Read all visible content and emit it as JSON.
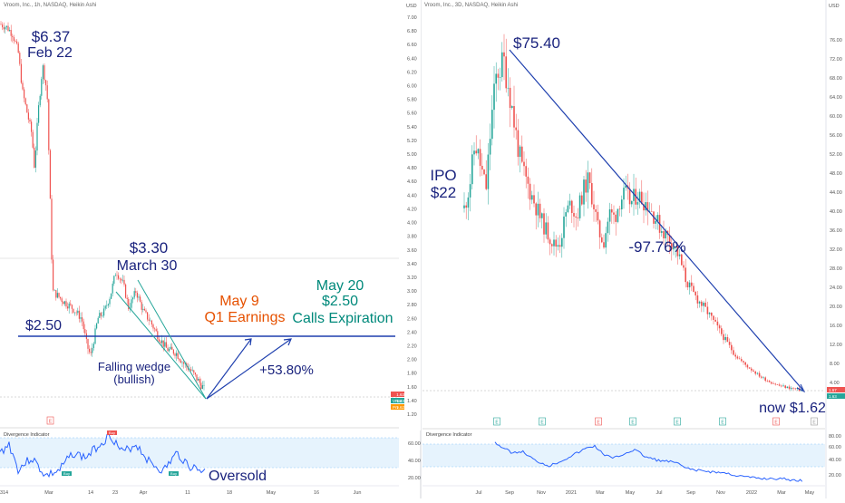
{
  "left": {
    "header": "Vroom, Inc., 1h, NASDAQ, Heikin Ashi",
    "price_axis": {
      "ticks": [
        "7.00",
        "6.80",
        "6.60",
        "6.40",
        "6.20",
        "6.00",
        "5.80",
        "5.60",
        "5.40",
        "5.20",
        "5.00",
        "4.80",
        "4.60",
        "4.40",
        "4.20",
        "4.00",
        "3.80",
        "3.60",
        "3.40",
        "3.20",
        "3.00",
        "2.80",
        "2.60",
        "2.40",
        "2.20",
        "2.00",
        "1.80",
        "1.60",
        "1.40",
        "1.20"
      ],
      "unit": "USD"
    },
    "x_ticks": [
      "14",
      "Mar",
      "14",
      "23",
      "Apr",
      "11",
      "18",
      "May",
      "16",
      "Jun",
      "13"
    ],
    "annotations": {
      "high_price": "$6.37",
      "high_date": "Feb 22",
      "mid_price": "$3.30",
      "mid_date": "March 30",
      "support": "$2.50",
      "wedge_1": "Falling wedge",
      "wedge_2": "(bullish)",
      "target_pct": "+53.80%",
      "earnings_1": "May 9",
      "earnings_2": "Q1 Earnings",
      "expiry_1": "May 20",
      "expiry_2": "$2.50",
      "expiry_3": "Calls Expiration",
      "oversold": "Oversold"
    },
    "price_tags": [
      "1.63",
      "1.63",
      "1.62"
    ],
    "tag_labels": [
      "VRM",
      "Prv"
    ],
    "indicator": {
      "title": "Divergence Indicator",
      "ticks": [
        "60.00",
        "40.00",
        "20.00"
      ]
    },
    "event_marks": [
      "E",
      "Buy",
      "Buy",
      "Buy"
    ]
  },
  "right": {
    "header": "Vroom, Inc., 3D, NASDAQ, Heikin Ashi",
    "price_axis": {
      "ticks": [
        "76.00",
        "72.00",
        "68.00",
        "64.00",
        "60.00",
        "56.00",
        "52.00",
        "48.00",
        "44.00",
        "40.00",
        "36.00",
        "32.00",
        "28.00",
        "24.00",
        "20.00",
        "16.00",
        "12.00",
        "8.00",
        "4.00"
      ],
      "unit": "USD"
    },
    "x_ticks": [
      "Jul",
      "Sep",
      "Nov",
      "2021",
      "Mar",
      "May",
      "Jul",
      "Sep",
      "Nov",
      "2022",
      "Mar",
      "May"
    ],
    "annotations": {
      "high": "$75.40",
      "ipo_1": "IPO",
      "ipo_2": "$22",
      "drop_pct": "-97.76%",
      "now": "now $1.62"
    },
    "price_tags": [
      "1.67",
      "1.63"
    ],
    "indicator": {
      "title": "Divergence Indicator",
      "ticks": [
        "80.00",
        "60.00",
        "40.00",
        "20.00"
      ]
    },
    "event_marks": [
      "E",
      "E",
      "E",
      "E",
      "E",
      "E",
      "E",
      "E"
    ]
  },
  "colors": {
    "up": "#26a69a",
    "down": "#ef5350",
    "annot_blue": "#1a237e",
    "line_blue": "#1e3fae",
    "earnings_orange": "#e65100",
    "expiry_green": "#00897b",
    "indicator": "#2962ff"
  },
  "chart_data": [
    {
      "type": "line",
      "title": "",
      "series": [
        {
          "name": "",
          "x": [
            "Feb 14",
            "Feb 22",
            "Mar 1",
            "Mar 14",
            "Mar 23",
            "Mar 30",
            "Apr 4",
            "Apr 11",
            "Apr 18",
            "Apr 22"
          ],
          "y": [
            6.9,
            6.37,
            3.0,
            2.6,
            3.1,
            3.3,
            2.9,
            2.4,
            2.0,
            1.62
          ]
        }
      ],
      "ylim": [
        1.2,
        7.0
      ]
    },
    {
      "type": "line",
      "title": "",
      "series": [
        {
          "name": "",
          "x": [
            "Jul 2020",
            "Sep 2020",
            "Nov 2020",
            "2021",
            "Mar 2021",
            "May 2021",
            "Jul 2021",
            "Sep 2021",
            "Nov 2021",
            "2022",
            "Mar 2022",
            "Apr 2022"
          ],
          "y": [
            42,
            70,
            40,
            42,
            45,
            45,
            42,
            25,
            18,
            7,
            3,
            1.62
          ]
        }
      ],
      "ylim": [
        0,
        78
      ]
    }
  ]
}
